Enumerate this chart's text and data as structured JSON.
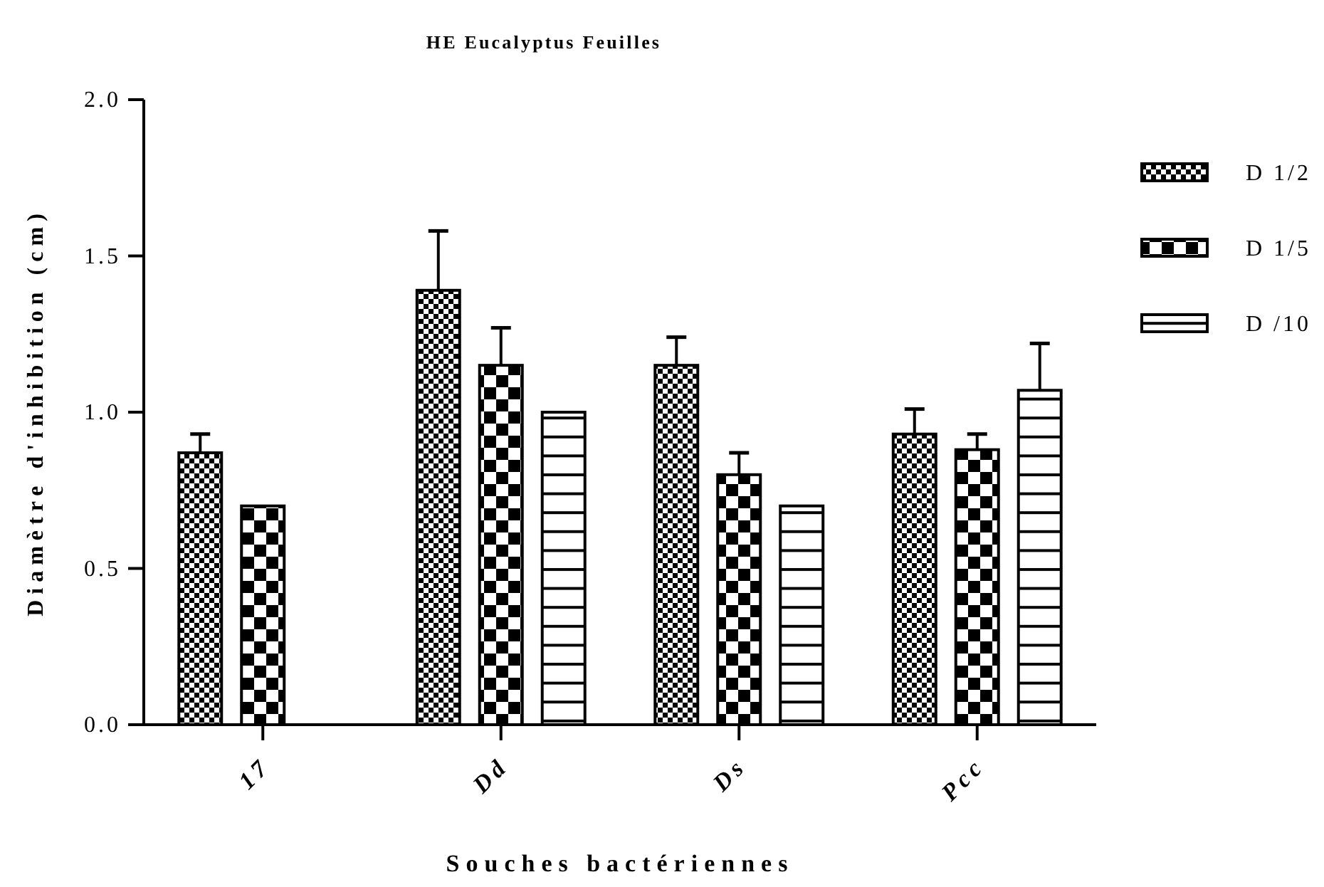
{
  "chart_data": {
    "type": "bar",
    "title": "HE Eucalyptus Feuilles",
    "xlabel": "Souches bactériennes",
    "ylabel": "Diamètre d'inhibition (cm)",
    "categories": [
      "17",
      "Dd",
      "Ds",
      "Pcc"
    ],
    "series": [
      {
        "name": "D 1/2",
        "color": "#000000",
        "values": [
          0.87,
          1.39,
          1.15,
          0.93
        ],
        "errors": [
          [
            0.87,
            0.93
          ],
          [
            1.39,
            1.58
          ],
          [
            1.15,
            1.24
          ],
          [
            0.93,
            1.01
          ]
        ]
      },
      {
        "name": "D 1/5",
        "color": "#000000",
        "values": [
          0.7,
          1.15,
          0.8,
          0.88
        ],
        "errors": [
          null,
          [
            1.15,
            1.27
          ],
          [
            0.8,
            0.87
          ],
          [
            0.88,
            0.93
          ]
        ]
      },
      {
        "name": "D /10",
        "color": "#000000",
        "values": [
          null,
          1.0,
          0.7,
          1.07
        ],
        "errors": [
          null,
          null,
          null,
          [
            1.07,
            1.22
          ]
        ]
      }
    ],
    "ylim": [
      0,
      2
    ],
    "yticks": [
      {
        "value": 0,
        "label": "0.0"
      },
      {
        "value": 0.5,
        "label": "0.5"
      },
      {
        "value": 1,
        "label": "1.0"
      },
      {
        "value": 1.5,
        "label": "1.5"
      },
      {
        "value": 2,
        "label": "2.0"
      }
    ],
    "legend": "top right",
    "grid": false
  }
}
